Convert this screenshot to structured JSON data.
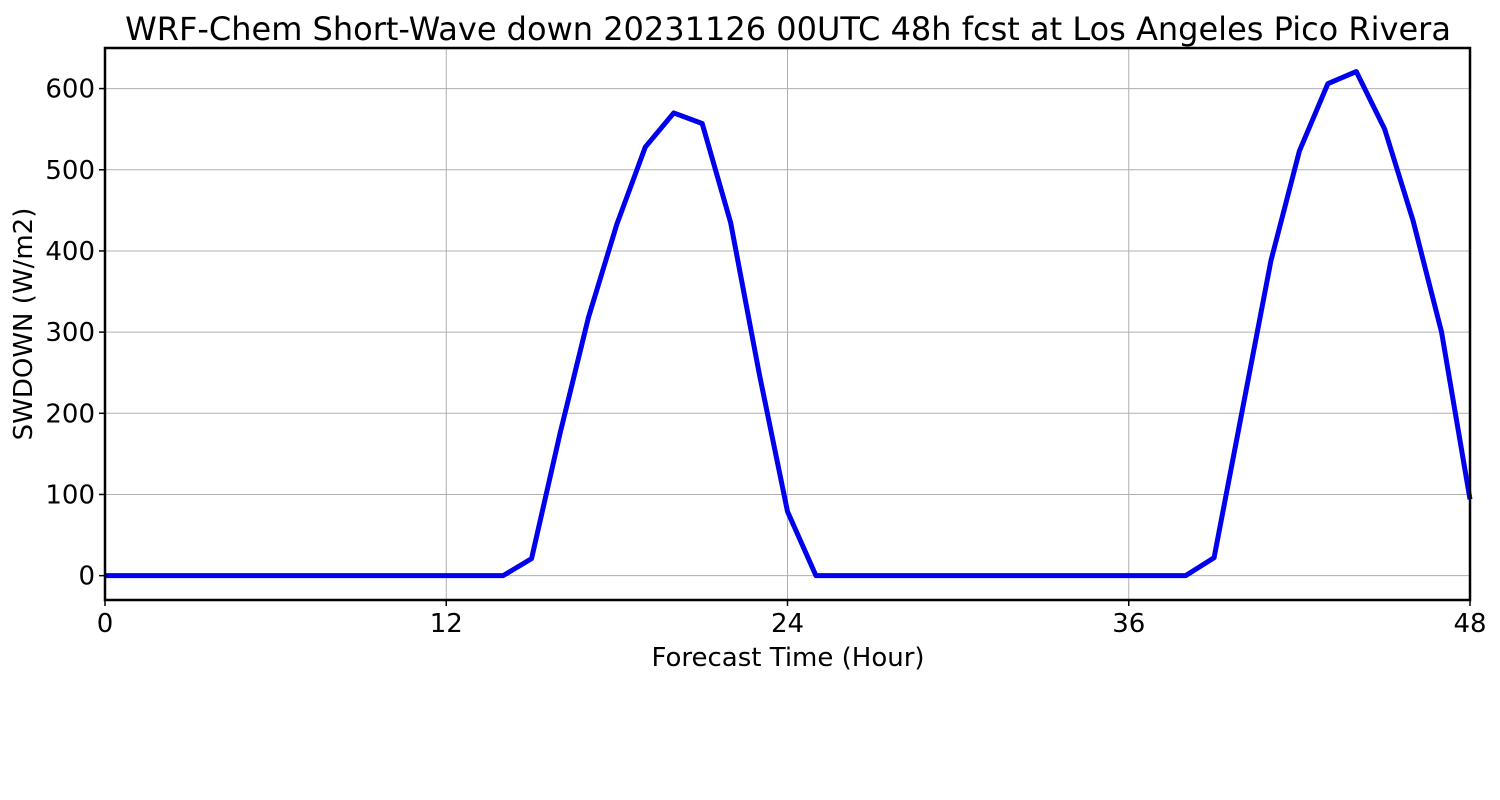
{
  "chart_data": {
    "type": "line",
    "title": "WRF-Chem Short-Wave down  20231126 00UTC 48h fcst at Los Angeles Pico Rivera",
    "xlabel": "Forecast Time (Hour)",
    "ylabel": "SWDOWN  (W/m2)",
    "xlim": [
      0,
      48
    ],
    "ylim": [
      -30,
      650
    ],
    "xticks": [
      0,
      12,
      24,
      36,
      48
    ],
    "xtick_labels": [
      "0",
      "12",
      "24",
      "36",
      "48"
    ],
    "yticks": [
      0,
      100,
      200,
      300,
      400,
      500,
      600
    ],
    "ytick_labels": [
      "0",
      "100",
      "200",
      "300",
      "400",
      "500",
      "600"
    ],
    "grid": true,
    "series": [
      {
        "color": "#0000ee",
        "x": [
          0,
          1,
          2,
          3,
          4,
          5,
          6,
          7,
          8,
          9,
          10,
          11,
          12,
          13,
          14,
          15,
          16,
          17,
          18,
          19,
          20,
          21,
          22,
          23,
          24,
          25,
          26,
          27,
          28,
          29,
          30,
          31,
          32,
          33,
          34,
          35,
          36,
          37,
          38,
          39,
          40,
          41,
          42,
          43,
          44,
          45,
          46,
          47,
          48
        ],
        "values": [
          0,
          0,
          0,
          0,
          0,
          0,
          0,
          0,
          0,
          0,
          0,
          0,
          0,
          0,
          0,
          21,
          175,
          318,
          433,
          528,
          570,
          557,
          435,
          250,
          79,
          0,
          0,
          0,
          0,
          0,
          0,
          0,
          0,
          0,
          0,
          0,
          0,
          0,
          0,
          22,
          205,
          388,
          523,
          606,
          621,
          550,
          437,
          300,
          94
        ]
      }
    ]
  }
}
